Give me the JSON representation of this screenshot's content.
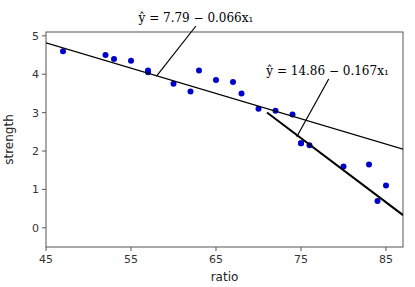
{
  "chart_data": {
    "type": "scatter",
    "xlabel": "ratio",
    "ylabel": "strength",
    "xlim": [
      45,
      87
    ],
    "ylim": [
      -0.5,
      5.1
    ],
    "xticks": [
      45,
      55,
      65,
      75,
      85
    ],
    "yticks": [
      0,
      1,
      2,
      3,
      4,
      5
    ],
    "grid": false,
    "series": [
      {
        "type": "scatter",
        "color": "#0000cc",
        "x": [
          47,
          52,
          53,
          55,
          57,
          57,
          60,
          62,
          63,
          65,
          67,
          68,
          70,
          72,
          74,
          75,
          75,
          76,
          80,
          83,
          84,
          85
        ],
        "values": [
          4.6,
          4.5,
          4.4,
          4.35,
          4.05,
          4.1,
          3.75,
          3.55,
          4.1,
          3.85,
          3.8,
          3.5,
          3.1,
          3.05,
          2.95,
          2.2,
          2.2,
          2.15,
          1.6,
          1.65,
          0.7,
          1.1
        ]
      },
      {
        "type": "line",
        "color": "#000000",
        "x": [
          45,
          87
        ],
        "values": [
          4.82,
          2.048
        ]
      },
      {
        "type": "line",
        "color": "#000000",
        "x": [
          71,
          87
        ],
        "values": [
          3.003,
          0.331
        ]
      }
    ],
    "annotations": [
      {
        "text": "ŷ = 7.79 − 0.066x₁",
        "x": 58.0,
        "y": 3.95
      },
      {
        "text": "ŷ = 14.86 − 0.167x₁",
        "x": 74.5,
        "y": 2.37
      }
    ]
  }
}
